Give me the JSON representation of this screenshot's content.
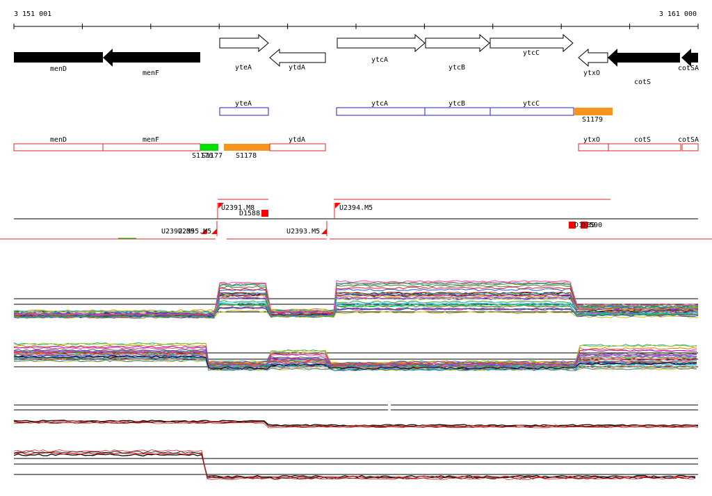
{
  "coords": {
    "start": "3 151 001",
    "end": "3 161 000"
  },
  "genes_top": [
    {
      "name": "menD",
      "strand": "-",
      "filled": true
    },
    {
      "name": "menF",
      "strand": "-",
      "filled": true
    },
    {
      "name": "yteA",
      "strand": "+",
      "filled": false
    },
    {
      "name": "ytdA",
      "strand": "-",
      "filled": false
    },
    {
      "name": "ytcA",
      "strand": "+",
      "filled": false
    },
    {
      "name": "ytcB",
      "strand": "+",
      "filled": false
    },
    {
      "name": "ytcC",
      "strand": "+",
      "filled": false
    },
    {
      "name": "ytxO",
      "strand": "-",
      "filled": false
    },
    {
      "name": "cotS",
      "strand": "-",
      "filled": true
    },
    {
      "name": "cotSA",
      "strand": "-",
      "filled": true
    }
  ],
  "operons_plus": [
    {
      "label": "yteA"
    },
    {
      "label": "ytcA"
    },
    {
      "label": "ytcB"
    },
    {
      "label": "ytcC"
    },
    {
      "label": "S1179",
      "color": "#f7941d"
    }
  ],
  "operons_minus": [
    {
      "label": "menD"
    },
    {
      "label": "menF"
    },
    {
      "label": "ytdA"
    },
    {
      "label": "ytxO"
    },
    {
      "label": "cotS"
    },
    {
      "label": "cotSA"
    },
    {
      "label": "S1176",
      "color": "#00e000"
    },
    {
      "label": "S1177"
    },
    {
      "label": "S1178",
      "color": "#f7941d"
    }
  ],
  "features": [
    {
      "label": "U2391.M8"
    },
    {
      "label": "D1588"
    },
    {
      "label": "U2394.M5"
    },
    {
      "label": "U2392.M5"
    },
    {
      "label": "U2393.M5"
    },
    {
      "label": "U2395.M5"
    },
    {
      "label": "D1589"
    },
    {
      "label": "D1590"
    }
  ],
  "colors": {
    "filled_gene": "#000000",
    "operon_plus_border": "#2020c0",
    "operon_minus_border": "#e02020",
    "feature": "#ff0000",
    "accent_orange": "#f7941d",
    "accent_green": "#00e000"
  }
}
